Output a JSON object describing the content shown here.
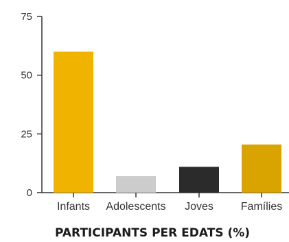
{
  "chart_data": {
    "type": "bar",
    "title": "PARTICIPANTS PER EDATS (%)",
    "xlabel": "",
    "ylabel": "",
    "categories": [
      "Infants",
      "Adolescents",
      "Joves",
      "Famílies"
    ],
    "values": [
      60,
      7,
      11,
      20.5
    ],
    "colors": [
      "#f0b400",
      "#cccccc",
      "#2b2b2b",
      "#d9a300"
    ],
    "ylim": [
      0,
      75
    ],
    "yticks": [
      0,
      25,
      50,
      75
    ],
    "grid": false,
    "legend": "none"
  }
}
